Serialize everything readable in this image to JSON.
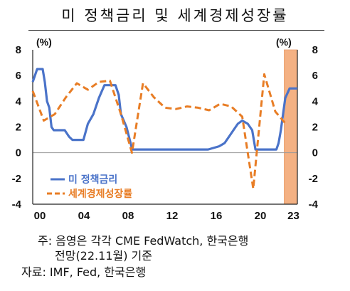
{
  "chart_data": {
    "type": "line",
    "title": "미 정책금리 및 세계경제성장률",
    "left_unit": "(%)",
    "right_unit": "(%)",
    "x_tick_labels": [
      "00",
      "04",
      "08",
      "12",
      "16",
      "20",
      "23"
    ],
    "x_tick_years": [
      2000,
      2004,
      2008,
      2012,
      2016,
      2020,
      2023
    ],
    "xlim": [
      2000,
      2024
    ],
    "ylim_left": [
      -4,
      8
    ],
    "ylim_right": [
      -4,
      8
    ],
    "y_ticks_left": [
      "8",
      "6",
      "4",
      "2",
      "0",
      "-2",
      "-4"
    ],
    "y_ticks_right": [
      "8",
      "6",
      "4",
      "2",
      "0",
      "-2",
      "-4"
    ],
    "forecast_shading": {
      "from": 2022.8,
      "to": 2024
    },
    "legend_position": "lower-left",
    "series": [
      {
        "name": "미 정책금리",
        "color": "#4a73c9",
        "style": "solid",
        "x": [
          2000.0,
          2000.4,
          2000.9,
          2001.1,
          2001.3,
          2001.5,
          2001.7,
          2001.9,
          2002.9,
          2003.3,
          2003.6,
          2004.6,
          2005.0,
          2005.5,
          2006.0,
          2006.5,
          2007.5,
          2007.8,
          2008.0,
          2008.5,
          2008.95,
          2009.0,
          2015.9,
          2016.9,
          2017.4,
          2017.8,
          2018.2,
          2018.6,
          2019.0,
          2019.5,
          2019.7,
          2019.9,
          2020.2,
          2022.1,
          2022.3,
          2022.5,
          2022.7,
          2022.9,
          2023.3,
          2024.0
        ],
        "y": [
          5.5,
          6.5,
          6.5,
          5.5,
          4.0,
          3.5,
          2.0,
          1.75,
          1.75,
          1.25,
          1.0,
          1.0,
          2.25,
          3.0,
          4.25,
          5.25,
          5.25,
          4.5,
          3.0,
          2.0,
          0.5,
          0.25,
          0.25,
          0.5,
          0.75,
          1.25,
          1.75,
          2.25,
          2.5,
          2.25,
          2.0,
          1.75,
          0.25,
          0.25,
          0.75,
          1.75,
          3.0,
          4.25,
          5.0,
          5.0
        ]
      },
      {
        "name": "세계경제성장률",
        "color": "#e87d25",
        "style": "dashed",
        "x": [
          2000,
          2001,
          2002,
          2003,
          2004,
          2005,
          2006,
          2007,
          2008,
          2009,
          2010,
          2011,
          2012,
          2013,
          2014,
          2015,
          2016,
          2017,
          2018,
          2019,
          2020,
          2021,
          2022,
          2023
        ],
        "y": [
          4.8,
          2.5,
          3.0,
          4.3,
          5.4,
          4.9,
          5.5,
          5.6,
          3.0,
          0.0,
          5.4,
          4.3,
          3.5,
          3.4,
          3.6,
          3.5,
          3.3,
          3.8,
          3.6,
          2.8,
          -2.8,
          6.1,
          3.2,
          2.2
        ]
      }
    ]
  },
  "notes": {
    "line1": "주: 음영은 각각 CME FedWatch, 한국은행",
    "line2": "전망(22.11월) 기준",
    "line3": "자료: IMF, Fed, 한국은행"
  }
}
